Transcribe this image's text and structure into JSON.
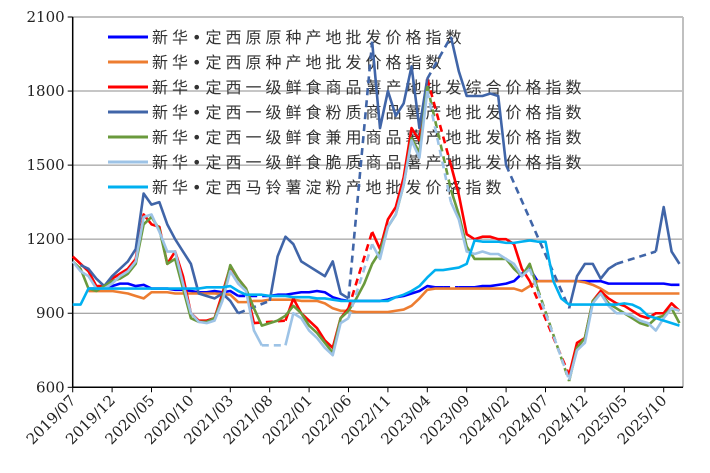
{
  "chart_data": {
    "type": "line",
    "title": "",
    "xlabel": "",
    "ylabel": "",
    "ylim": [
      600,
      2100
    ],
    "yticks": [
      "600",
      "900",
      "1200",
      "1500",
      "1800",
      "2100"
    ],
    "xticks": [
      "2019/07",
      "2019/12",
      "2020/05",
      "2020/10",
      "2021/03",
      "2021/08",
      "2022/01",
      "2022/06",
      "2022/11",
      "2023/04",
      "2023/09",
      "2024/02",
      "2024/07",
      "2024/12",
      "2025/05",
      "2025/10"
    ],
    "grid": "horizontal",
    "legend_placement": "top-left",
    "missing_values_drawn_as": "dashed",
    "x": [
      "2019/07",
      "2019/08",
      "2019/09",
      "2019/10",
      "2019/11",
      "2019/12",
      "2020/01",
      "2020/02",
      "2020/03",
      "2020/04",
      "2020/05",
      "2020/06",
      "2020/07",
      "2020/08",
      "2020/09",
      "2020/10",
      "2020/11",
      "2020/12",
      "2021/01",
      "2021/02",
      "2021/03",
      "2021/04",
      "2021/05",
      "2021/06",
      "2021/07",
      "2021/08",
      "2021/09",
      "2021/10",
      "2021/11",
      "2021/12",
      "2022/01",
      "2022/02",
      "2022/03",
      "2022/04",
      "2022/05",
      "2022/06",
      "2022/07",
      "2022/08",
      "2022/09",
      "2022/10",
      "2022/11",
      "2022/12",
      "2023/01",
      "2023/02",
      "2023/03",
      "2023/04",
      "2023/05",
      "2023/06",
      "2023/07",
      "2023/08",
      "2023/09",
      "2023/10",
      "2023/11",
      "2023/12",
      "2024/01",
      "2024/02",
      "2024/03",
      "2024/04",
      "2024/05",
      "2024/06",
      "2024/07",
      "2024/08",
      "2024/09",
      "2024/10",
      "2024/11",
      "2024/12",
      "2025/01",
      "2025/02",
      "2025/03",
      "2025/04",
      "2025/05",
      "2025/06",
      "2025/07",
      "2025/08",
      "2025/09",
      "2025/10",
      "2025/11",
      "2025/12"
    ],
    "series": [
      {
        "name": "新华•定西原原种产地批发价格指数",
        "color": "#0000ff",
        "values": [
          null,
          null,
          1000,
          1000,
          1010,
          1010,
          1020,
          1020,
          1010,
          1015,
          1000,
          1000,
          1000,
          995,
          995,
          990,
          985,
          985,
          990,
          985,
          990,
          970,
          null,
          null,
          null,
          970,
          975,
          975,
          980,
          985,
          985,
          990,
          985,
          965,
          955,
          950,
          950,
          950,
          950,
          950,
          955,
          965,
          970,
          980,
          990,
          1010,
          1005,
          1005,
          null,
          1005,
          1005,
          1005,
          1010,
          1010,
          1015,
          1020,
          1030,
          1060,
          1080,
          1030,
          1030,
          1030,
          1030,
          1030,
          1030,
          1030,
          1030,
          1030,
          1020,
          1020,
          1020,
          1020,
          1020,
          1020,
          1020,
          1020,
          1015,
          1015
        ]
      },
      {
        "name": "新华•定西原种产地批发价格指数",
        "color": "#ed7d31",
        "values": [
          null,
          null,
          990,
          990,
          990,
          990,
          985,
          980,
          970,
          960,
          985,
          985,
          985,
          980,
          980,
          980,
          980,
          980,
          980,
          978,
          975,
          945,
          945,
          950,
          950,
          955,
          955,
          955,
          955,
          950,
          950,
          950,
          940,
          920,
          910,
          910,
          905,
          905,
          905,
          905,
          905,
          910,
          915,
          930,
          960,
          995,
          1000,
          1000,
          1000,
          1000,
          1000,
          1000,
          1000,
          1000,
          1000,
          1000,
          1000,
          990,
          1010,
          1030,
          1030,
          1030,
          1030,
          1030,
          1030,
          1025,
          1015,
          1000,
          980,
          980,
          980,
          980,
          980,
          980,
          980,
          980,
          980,
          980
        ]
      },
      {
        "name": "新华•定西一级鲜食商品薯产地批发综合价格指数",
        "color": "#ff0000",
        "values": [
          1130,
          1100,
          1070,
          1010,
          1010,
          1040,
          1060,
          1080,
          1120,
          1300,
          1260,
          1250,
          1100,
          1150,
          1050,
          900,
          870,
          870,
          880,
          980,
          1090,
          1040,
          1000,
          860,
          null,
          null,
          null,
          870,
          960,
          900,
          870,
          840,
          790,
          760,
          880,
          920,
          null,
          null,
          1230,
          1160,
          1280,
          1330,
          1450,
          1650,
          1600,
          1850,
          null,
          null,
          1500,
          1380,
          1220,
          1200,
          1210,
          1210,
          1200,
          1200,
          1180,
          1080,
          1030,
          null,
          null,
          null,
          null,
          650,
          780,
          800,
          950,
          990,
          960,
          940,
          930,
          910,
          890,
          880,
          900,
          900,
          940,
          910
        ]
      },
      {
        "name": "新华•定西一级鲜食粉质商品薯产地批发价格指数",
        "color": "#4065a8",
        "values": [
          null,
          1095,
          1080,
          1040,
          1010,
          1050,
          1080,
          1110,
          1160,
          1385,
          1340,
          1350,
          1260,
          1200,
          1150,
          1100,
          980,
          970,
          960,
          980,
          950,
          900,
          null,
          null,
          null,
          950,
          1130,
          1210,
          1180,
          1110,
          1090,
          1070,
          1050,
          1110,
          980,
          960,
          null,
          null,
          2000,
          1650,
          1800,
          1700,
          1750,
          1900,
          1650,
          1850,
          null,
          null,
          2020,
          1880,
          1780,
          1780,
          1780,
          1790,
          1780,
          1500,
          null,
          null,
          null,
          null,
          null,
          null,
          null,
          920,
          1050,
          1100,
          1100,
          1040,
          1080,
          1100,
          null,
          null,
          null,
          null,
          1150,
          1330,
          1150,
          1100
        ]
      },
      {
        "name": "新华•定西一级鲜食兼用商品薯产地批发价格指数",
        "color": "#6a9a3c",
        "values": [
          1110,
          1080,
          1000,
          990,
          1010,
          1030,
          1040,
          1060,
          1100,
          1260,
          1290,
          1240,
          1100,
          1120,
          1000,
          880,
          865,
          865,
          880,
          960,
          1095,
          1040,
          1000,
          920,
          850,
          860,
          870,
          890,
          930,
          900,
          850,
          820,
          780,
          740,
          880,
          910,
          960,
          1020,
          1100,
          1150,
          1250,
          1300,
          1420,
          1610,
          1550,
          1820,
          null,
          null,
          1400,
          1300,
          1170,
          1120,
          1120,
          1120,
          1120,
          1120,
          1080,
          1050,
          1100,
          1000,
          null,
          null,
          null,
          625,
          760,
          800,
          950,
          980,
          940,
          920,
          900,
          880,
          860,
          850,
          880,
          890,
          920,
          860
        ]
      },
      {
        "name": "新华•定西一级鲜食脆质商品薯产地批发价格指数",
        "color": "#9dc3e6",
        "values": [
          1110,
          1070,
          1050,
          1000,
          1000,
          1020,
          1050,
          1070,
          1110,
          1290,
          1300,
          1230,
          1150,
          1150,
          1020,
          900,
          865,
          860,
          870,
          950,
          1070,
          1020,
          990,
          830,
          770,
          null,
          null,
          770,
          900,
          880,
          830,
          800,
          760,
          730,
          860,
          880,
          null,
          null,
          1180,
          1120,
          1250,
          1300,
          1420,
          1600,
          1530,
          1800,
          null,
          null,
          1350,
          1280,
          1150,
          1140,
          1150,
          1140,
          1140,
          1120,
          1100,
          1050,
          1080,
          null,
          null,
          null,
          null,
          630,
          750,
          780,
          940,
          980,
          930,
          900,
          900,
          890,
          870,
          860,
          830,
          880,
          920,
          910
        ]
      },
      {
        "name": "新华•定西马铃薯淀粉产地批发价格指数",
        "color": "#00b0f0",
        "values": [
          935,
          935,
          1000,
          1000,
          1000,
          1000,
          1000,
          1000,
          1000,
          1000,
          1000,
          1000,
          1000,
          1000,
          1000,
          1000,
          1000,
          1005,
          1005,
          1005,
          1010,
          990,
          975,
          975,
          975,
          970,
          970,
          970,
          965,
          965,
          965,
          960,
          960,
          955,
          950,
          950,
          950,
          950,
          950,
          950,
          950,
          965,
          975,
          990,
          1010,
          1045,
          1075,
          1075,
          1080,
          1085,
          1100,
          1195,
          1190,
          1190,
          1190,
          1185,
          1185,
          1190,
          1195,
          1190,
          1190,
          1030,
          960,
          935,
          935,
          935,
          935,
          935,
          935,
          935,
          940,
          935,
          920,
          890,
          880,
          870,
          860,
          850
        ]
      }
    ]
  }
}
